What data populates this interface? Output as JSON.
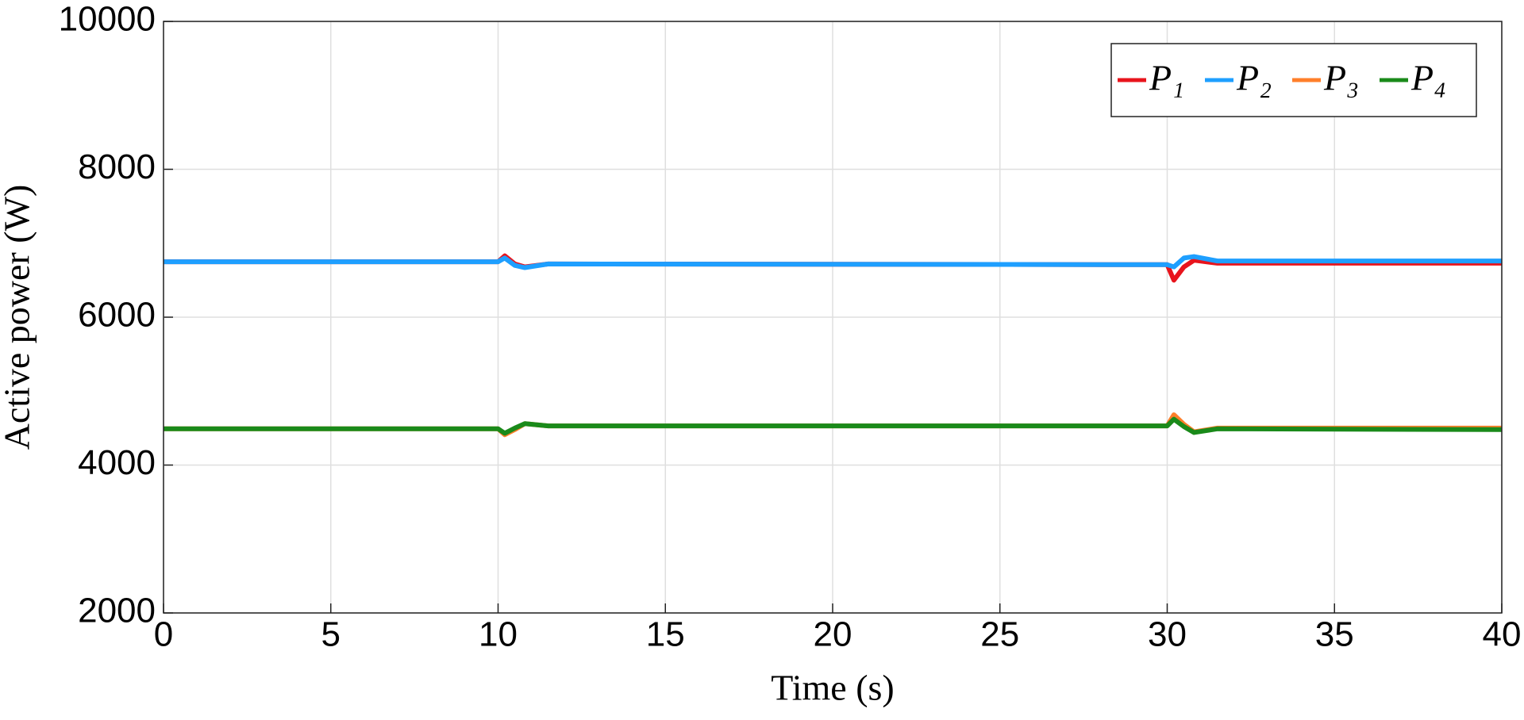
{
  "chart_data": {
    "type": "line",
    "x_label": "Time (s)",
    "y_label": "Active power (W)",
    "x": [
      0,
      10,
      10.2,
      10.5,
      10.8,
      11.5,
      30,
      30.2,
      30.5,
      30.8,
      31.5,
      40
    ],
    "series": [
      {
        "name": "P₁",
        "color": "#e8141c",
        "values": [
          6750,
          6750,
          6830,
          6720,
          6680,
          6720,
          6710,
          6500,
          6680,
          6770,
          6730,
          6730
        ]
      },
      {
        "name": "P₂",
        "color": "#1e9fff",
        "values": [
          6750,
          6750,
          6800,
          6700,
          6670,
          6720,
          6710,
          6680,
          6800,
          6820,
          6760,
          6760
        ]
      },
      {
        "name": "P₃",
        "color": "#ff7f2a",
        "values": [
          4490,
          4490,
          4410,
          4480,
          4560,
          4530,
          4530,
          4680,
          4550,
          4450,
          4500,
          4500
        ]
      },
      {
        "name": "P₄",
        "color": "#1a8a1a",
        "values": [
          4490,
          4490,
          4430,
          4500,
          4560,
          4530,
          4530,
          4620,
          4520,
          4440,
          4490,
          4480
        ]
      }
    ],
    "xlim": [
      0,
      40
    ],
    "xticks": [
      0,
      5,
      10,
      15,
      20,
      25,
      30,
      35,
      40
    ],
    "ylim": [
      2000,
      10000
    ],
    "yticks": [
      2000,
      4000,
      6000,
      8000,
      10000
    ],
    "grid": true,
    "legend": "upper right"
  }
}
